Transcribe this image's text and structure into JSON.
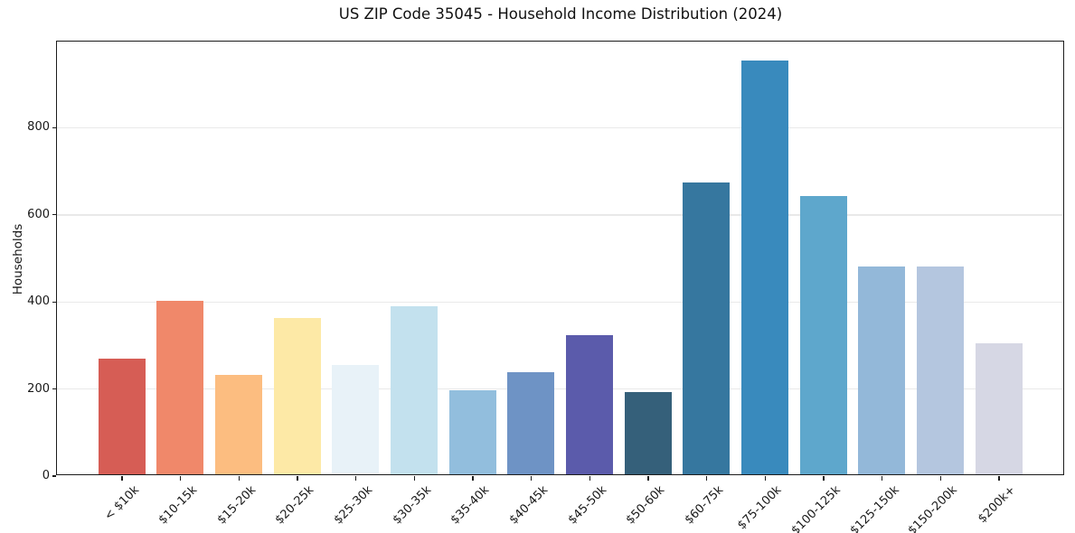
{
  "figure": {
    "background": "#ffffff",
    "spine_color": "#1c1c1c",
    "grid_color": "#e9e9e9",
    "text_color": "#191919"
  },
  "chart_data": {
    "type": "bar",
    "title": "US ZIP Code 35045 - Household Income Distribution (2024)",
    "xlabel": "",
    "ylabel": "Households",
    "categories": [
      "< $10k",
      "$10-15k",
      "$15-20k",
      "$20-25k",
      "$25-30k",
      "$30-35k",
      "$35-40k",
      "$40-45k",
      "$45-50k",
      "$50-60k",
      "$60-75k",
      "$75-100k",
      "$100-125k",
      "$125-150k",
      "$150-200k",
      "$200k+"
    ],
    "values": [
      265,
      398,
      229,
      359,
      252,
      386,
      193,
      234,
      319,
      189,
      670,
      951,
      640,
      477,
      477,
      300
    ],
    "bar_colors": [
      "#d65d55",
      "#f0886a",
      "#fcbd80",
      "#fde9a6",
      "#e8f2f8",
      "#c3e1ee",
      "#92bedd",
      "#6e93c5",
      "#5b5bab",
      "#35607a",
      "#36779f",
      "#398abd",
      "#5ea7cc",
      "#93b8d9",
      "#b4c6df",
      "#d6d7e4"
    ],
    "ylim": [
      0,
      1000
    ],
    "yticks": [
      0,
      200,
      400,
      600,
      800
    ],
    "grid": "horizontal",
    "legend": "none",
    "x_tick_rotation_deg": 45
  }
}
